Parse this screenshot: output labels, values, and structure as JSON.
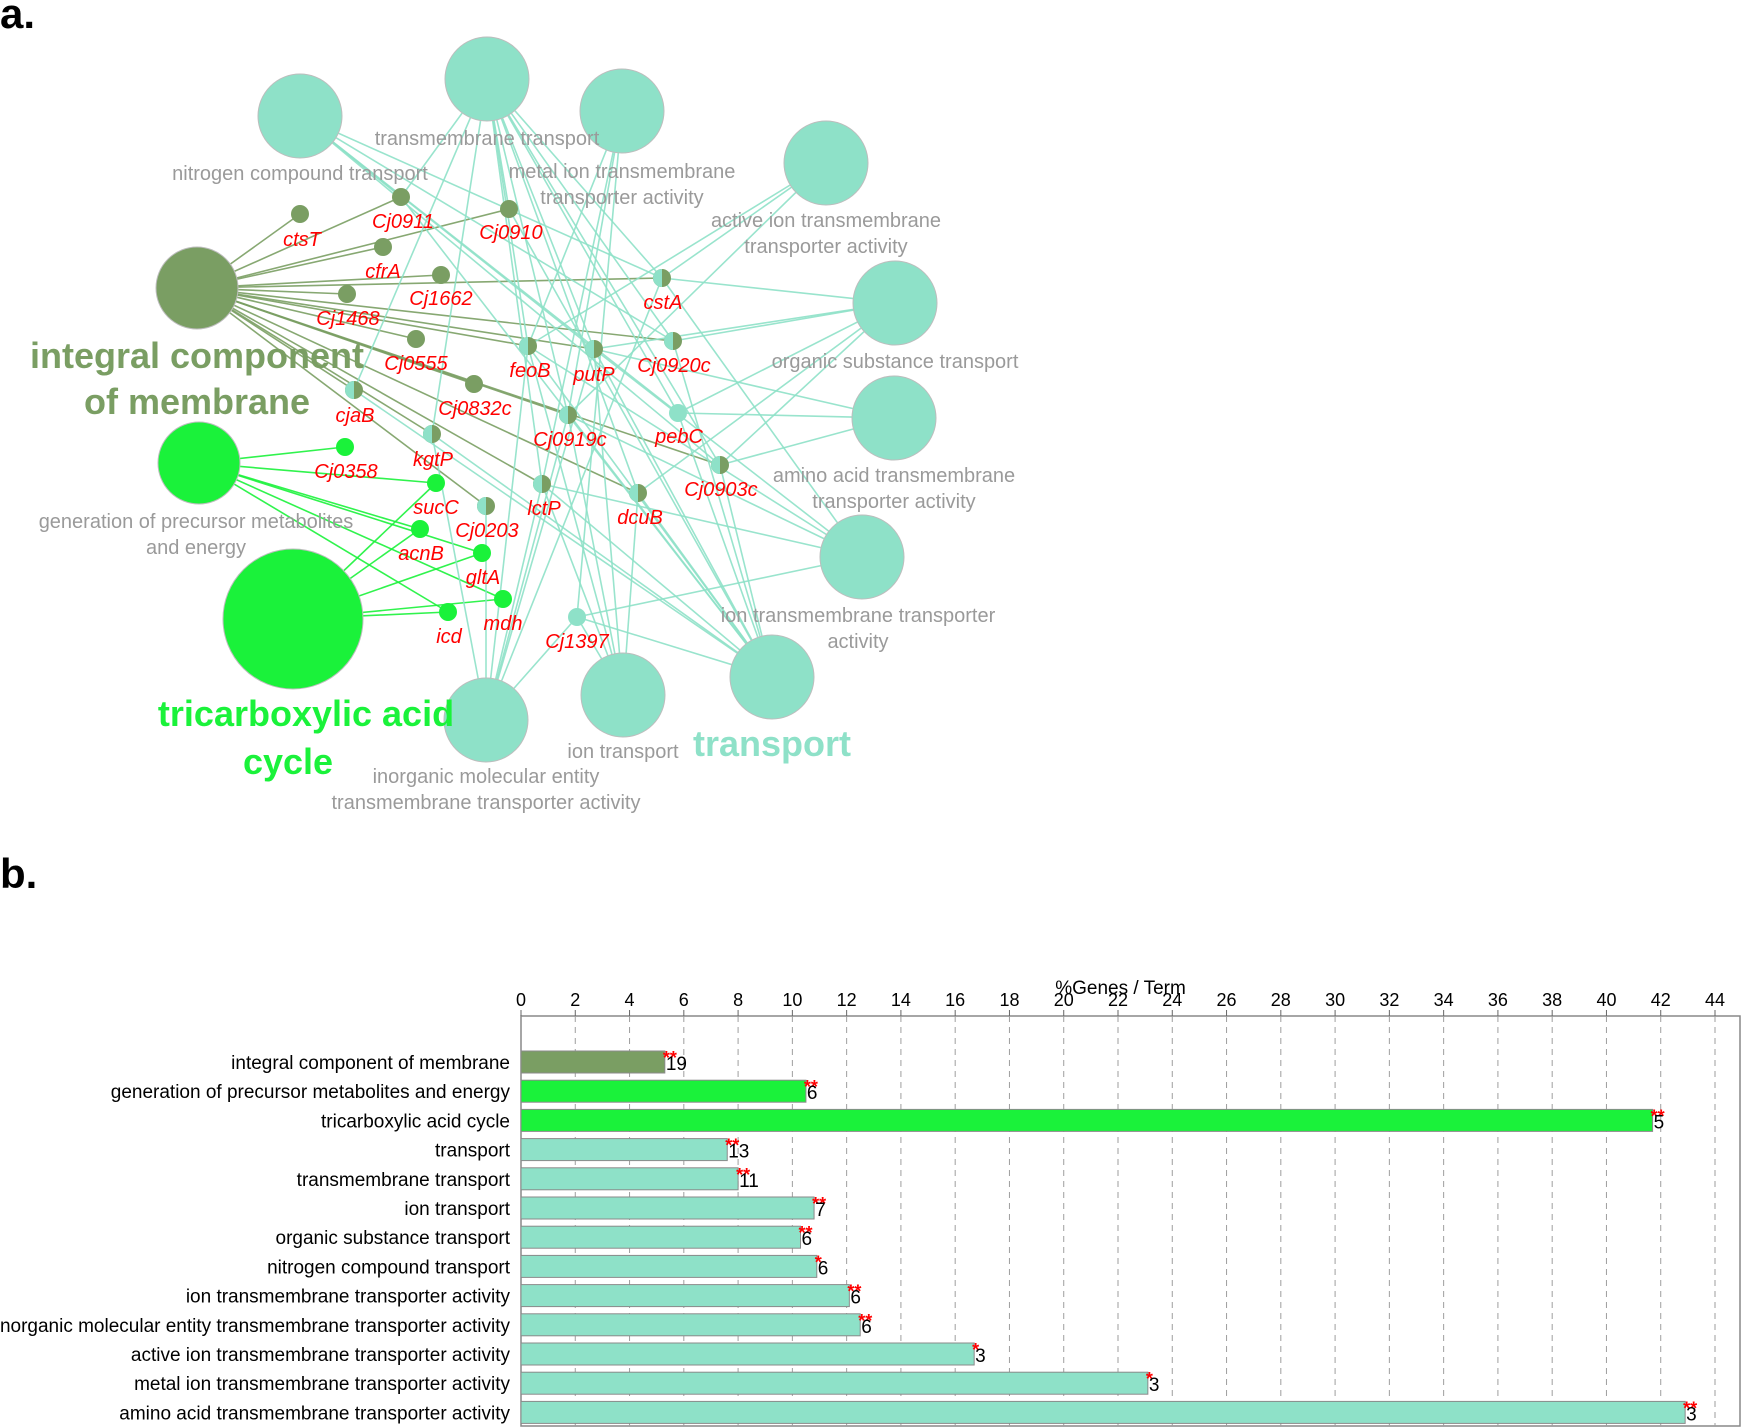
{
  "panel_a_label": "a.",
  "panel_b_label": "b.",
  "colors": {
    "membrane": "#7a9e63",
    "tca": "#1af23a",
    "transport": "#8ee1c8",
    "gene_text": "#ff0000",
    "term_text": "#9a9a9a"
  },
  "network": {
    "groups": [
      {
        "id": "membrane",
        "label_line1": "integral component",
        "label_line2": "of membrane"
      },
      {
        "id": "tca",
        "label_line1": "tricarboxylic acid",
        "label_line2": "cycle"
      },
      {
        "id": "transport",
        "label_line1": "transport",
        "label_line2": ""
      }
    ],
    "terms": [
      {
        "id": "icm",
        "group": "membrane",
        "label_lines": []
      },
      {
        "id": "gpme",
        "group": "tca",
        "label_lines": [
          "generation of precursor metabolites",
          "and energy"
        ]
      },
      {
        "id": "tac",
        "group": "tca",
        "label_lines": []
      },
      {
        "id": "nct",
        "group": "transport",
        "label_lines": [
          "nitrogen compound transport"
        ]
      },
      {
        "id": "tmt",
        "group": "transport",
        "label_lines": [
          "transmembrane transport"
        ]
      },
      {
        "id": "mit",
        "group": "transport",
        "label_lines": [
          "metal ion transmembrane",
          "transporter activity"
        ]
      },
      {
        "id": "ait",
        "group": "transport",
        "label_lines": [
          "active ion transmembrane",
          "transporter activity"
        ]
      },
      {
        "id": "ost",
        "group": "transport",
        "label_lines": [
          "organic substance transport"
        ]
      },
      {
        "id": "aat",
        "group": "transport",
        "label_lines": [
          "amino acid transmembrane",
          "transporter activity"
        ]
      },
      {
        "id": "itt",
        "group": "transport",
        "label_lines": [
          "ion transmembrane transporter",
          "activity"
        ]
      },
      {
        "id": "tr",
        "group": "transport",
        "label_lines": []
      },
      {
        "id": "it",
        "group": "transport",
        "label_lines": [
          "ion transport"
        ]
      },
      {
        "id": "imt",
        "group": "transport",
        "label_lines": [
          "inorganic molecular entity",
          "transmembrane transporter activity"
        ]
      }
    ],
    "genes": [
      {
        "id": "ctsT",
        "label": "ctsT",
        "type": "membrane"
      },
      {
        "id": "Cj0911",
        "label": "Cj0911",
        "type": "membrane"
      },
      {
        "id": "Cj0910",
        "label": "Cj0910",
        "type": "membrane"
      },
      {
        "id": "cfrA",
        "label": "cfrA",
        "type": "membrane"
      },
      {
        "id": "Cj1662",
        "label": "Cj1662",
        "type": "membrane"
      },
      {
        "id": "Cj1468",
        "label": "Cj1468",
        "type": "membrane"
      },
      {
        "id": "Cj0555",
        "label": "Cj0555",
        "type": "membrane"
      },
      {
        "id": "Cj0832c",
        "label": "Cj0832c",
        "type": "membrane"
      },
      {
        "id": "Cj0203",
        "label": "Cj0203",
        "type": "mixed"
      },
      {
        "id": "cjaB",
        "label": "cjaB",
        "type": "mixed"
      },
      {
        "id": "kgtP",
        "label": "kgtP",
        "type": "mixed"
      },
      {
        "id": "cstA",
        "label": "cstA",
        "type": "mixed"
      },
      {
        "id": "feoB",
        "label": "feoB",
        "type": "mixed"
      },
      {
        "id": "putP",
        "label": "putP",
        "type": "mixed"
      },
      {
        "id": "Cj0920c",
        "label": "Cj0920c",
        "type": "mixed"
      },
      {
        "id": "Cj0919c",
        "label": "Cj0919c",
        "type": "mixed"
      },
      {
        "id": "pebC",
        "label": "pebC",
        "type": "transport"
      },
      {
        "id": "Cj0903c",
        "label": "Cj0903c",
        "type": "mixed"
      },
      {
        "id": "lctP",
        "label": "lctP",
        "type": "mixed"
      },
      {
        "id": "dcuB",
        "label": "dcuB",
        "type": "mixed"
      },
      {
        "id": "Cj1397",
        "label": "Cj1397",
        "type": "transport"
      },
      {
        "id": "Cj0358",
        "label": "Cj0358",
        "type": "tca"
      },
      {
        "id": "sucC",
        "label": "sucC",
        "type": "tca"
      },
      {
        "id": "acnB",
        "label": "acnB",
        "type": "tca"
      },
      {
        "id": "gltA",
        "label": "gltA",
        "type": "tca"
      },
      {
        "id": "icd",
        "label": "icd",
        "type": "tca"
      },
      {
        "id": "mdh",
        "label": "mdh",
        "type": "tca"
      }
    ]
  },
  "chart_data": {
    "type": "bar",
    "orientation": "horizontal",
    "title": "%Genes / Term",
    "xlim": [
      0,
      44
    ],
    "xticks": [
      0,
      2,
      4,
      6,
      8,
      10,
      12,
      14,
      16,
      18,
      20,
      22,
      24,
      26,
      28,
      30,
      32,
      34,
      36,
      38,
      40,
      42,
      44
    ],
    "grid": true,
    "categories": [
      "integral component of membrane",
      "generation of precursor metabolites and energy",
      "tricarboxylic acid cycle",
      "transport",
      "transmembrane transport",
      "ion transport",
      "organic substance transport",
      "nitrogen compound transport",
      "ion transmembrane transporter activity",
      "inorganic molecular entity transmembrane transporter activity",
      "active ion transmembrane transporter activity",
      "metal ion transmembrane transporter activity",
      "amino acid transmembrane transporter activity"
    ],
    "values": [
      5.3,
      10.5,
      41.7,
      7.6,
      8.0,
      10.8,
      10.3,
      10.9,
      12.1,
      12.5,
      16.7,
      23.1,
      42.9
    ],
    "counts": [
      "19",
      "6",
      "5",
      "13",
      "11",
      "7",
      "6",
      "6",
      "6",
      "6",
      "3",
      "3",
      "3"
    ],
    "significance": [
      "**",
      "**",
      "**",
      "**",
      "**",
      "**",
      "**",
      "*",
      "**",
      "**",
      "*",
      "*",
      "**"
    ],
    "bar_groups": [
      "membrane",
      "tca",
      "tca",
      "transport",
      "transport",
      "transport",
      "transport",
      "transport",
      "transport",
      "transport",
      "transport",
      "transport",
      "transport"
    ]
  }
}
